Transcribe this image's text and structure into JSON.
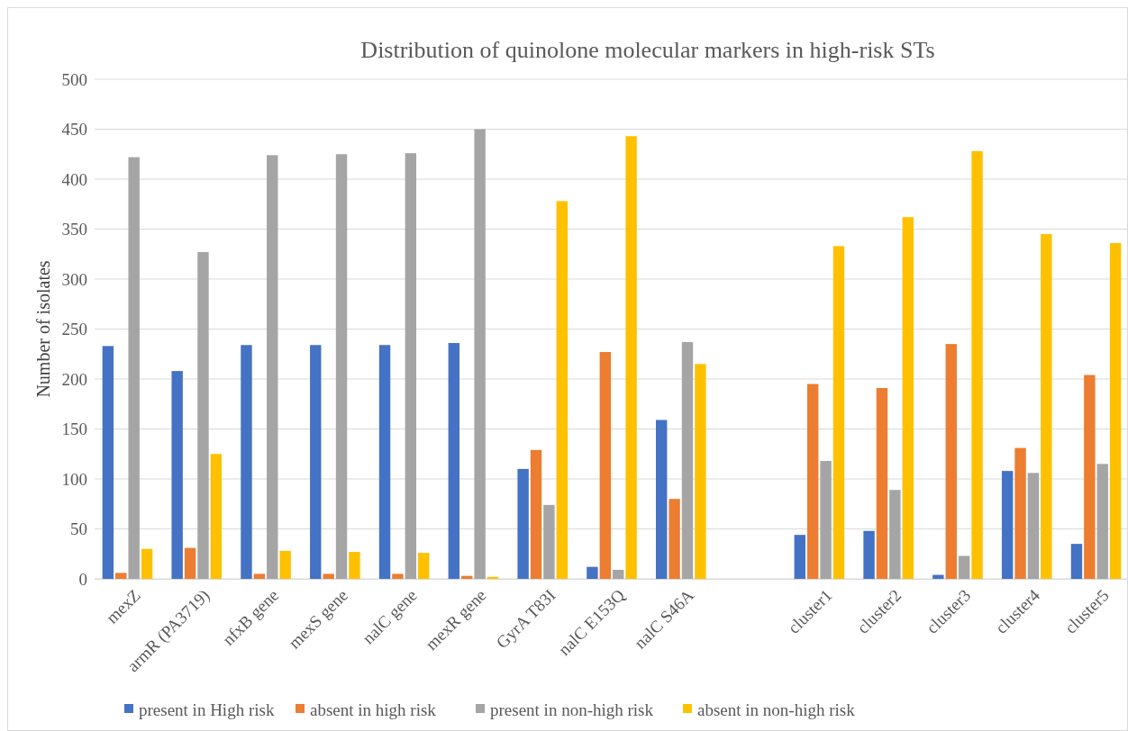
{
  "chart_data": {
    "type": "bar",
    "title": "Distribution of quinolone molecular markers in high-risk STs",
    "ylabel": "Number of isolates",
    "categories": [
      "mexZ",
      "armR (PA3719)",
      "nfxB gene",
      "mexS gene",
      "nalC gene",
      "mexR gene",
      "GyrA  T83I",
      "nalC E153Q",
      "nalC S46A",
      null,
      "cluster1",
      "cluster2",
      "cluster3",
      "cluster4",
      "cluster5"
    ],
    "series": [
      {
        "name": "present in High risk",
        "color": "#4472c4",
        "values": [
          233,
          208,
          234,
          234,
          234,
          236,
          110,
          12,
          159,
          null,
          44,
          48,
          4,
          108,
          35
        ]
      },
      {
        "name": "absent in high risk",
        "color": "#ed7d31",
        "values": [
          6,
          31,
          5,
          5,
          5,
          3,
          129,
          227,
          80,
          null,
          195,
          191,
          235,
          131,
          204
        ]
      },
      {
        "name": "present in non-high risk",
        "color": "#a5a5a5",
        "values": [
          422,
          327,
          424,
          425,
          426,
          450,
          74,
          9,
          237,
          null,
          118,
          89,
          23,
          106,
          115
        ]
      },
      {
        "name": "absent in non-high risk",
        "color": "#ffc000",
        "values": [
          30,
          125,
          28,
          27,
          26,
          2,
          378,
          443,
          215,
          null,
          333,
          362,
          428,
          345,
          336
        ]
      }
    ],
    "ylim": [
      0,
      500
    ],
    "yticks": [
      0,
      50,
      100,
      150,
      200,
      250,
      300,
      350,
      400,
      450,
      500
    ],
    "grid": "y",
    "legend": "bottom"
  }
}
